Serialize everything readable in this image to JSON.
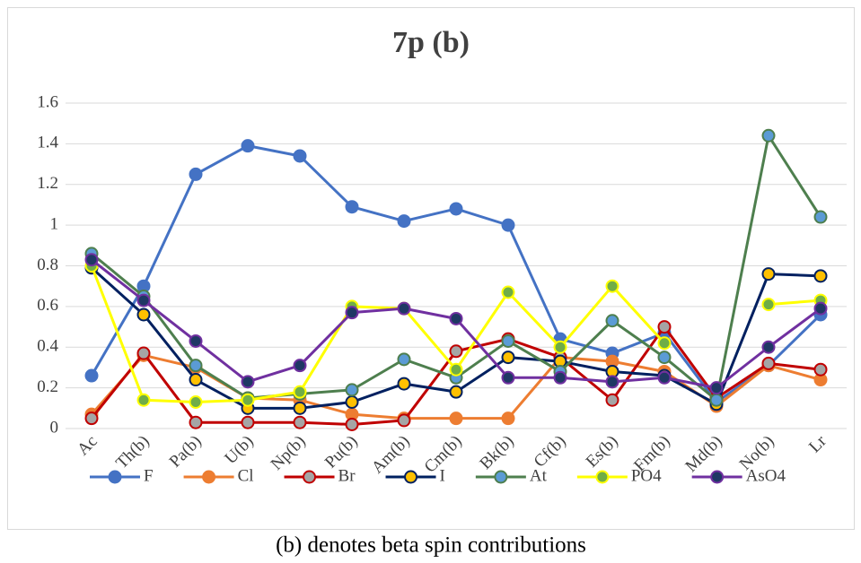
{
  "chart_data": {
    "type": "line",
    "title": "7p (b)",
    "caption": "(b) denotes beta spin contributions",
    "categories": [
      "Ac",
      "Th(b)",
      "Pa(b)",
      "U(b)",
      "Np(b)",
      "Pu(b)",
      "Am(b)",
      "Cm(b)",
      "Bk(b)",
      "Cf(b)",
      "Es(b)",
      "Fm(b)",
      "Md(b)",
      "No(b)",
      "Lr"
    ],
    "ylim": [
      0,
      1.6
    ],
    "yticks": [
      0,
      0.2,
      0.4,
      0.6,
      0.8,
      1,
      1.2,
      1.4,
      1.6
    ],
    "grid": true,
    "legend": "bottom",
    "series": [
      {
        "name": "F",
        "color": "#4472c4",
        "marker_color": "#4472c4",
        "values": [
          0.26,
          0.7,
          1.25,
          1.39,
          1.34,
          1.09,
          1.02,
          1.08,
          1.0,
          0.44,
          0.37,
          0.47,
          0.13,
          0.31,
          0.56
        ]
      },
      {
        "name": "Cl",
        "color": "#ed7d31",
        "marker_color": "#ed7d31",
        "values": [
          0.07,
          0.36,
          0.3,
          0.15,
          0.14,
          0.07,
          0.05,
          0.05,
          0.05,
          0.35,
          0.33,
          0.28,
          0.11,
          0.31,
          0.24
        ]
      },
      {
        "name": "Br",
        "color": "#c00000",
        "marker_color": "#a5a5a5",
        "values": [
          0.05,
          0.37,
          0.03,
          0.03,
          0.03,
          0.02,
          0.04,
          0.38,
          0.44,
          0.35,
          0.14,
          0.5,
          0.15,
          0.32,
          0.29
        ]
      },
      {
        "name": "I",
        "color": "#002060",
        "marker_color": "#ffc000",
        "values": [
          0.79,
          0.56,
          0.24,
          0.1,
          0.1,
          0.13,
          0.22,
          0.18,
          0.35,
          0.33,
          0.28,
          0.26,
          0.12,
          0.76,
          0.75
        ]
      },
      {
        "name": "At",
        "color": "#4e7f4e",
        "marker_color": "#5b9bd5",
        "values": [
          0.86,
          0.65,
          0.31,
          0.15,
          0.17,
          0.19,
          0.34,
          0.25,
          0.43,
          0.28,
          0.53,
          0.35,
          0.14,
          1.44,
          1.04
        ]
      },
      {
        "name": "PO4",
        "color": "#ffff00",
        "marker_color": "#70ad47",
        "values": [
          0.8,
          0.14,
          0.13,
          0.14,
          0.18,
          0.6,
          0.59,
          0.29,
          0.67,
          0.4,
          0.7,
          0.42,
          null,
          0.61,
          0.63
        ]
      },
      {
        "name": "AsO4",
        "color": "#7030a0",
        "marker_color": "#1f3864",
        "values": [
          0.83,
          0.63,
          0.43,
          0.23,
          0.31,
          0.57,
          0.59,
          0.54,
          0.25,
          0.25,
          0.23,
          0.25,
          0.2,
          0.4,
          0.59
        ]
      }
    ]
  }
}
